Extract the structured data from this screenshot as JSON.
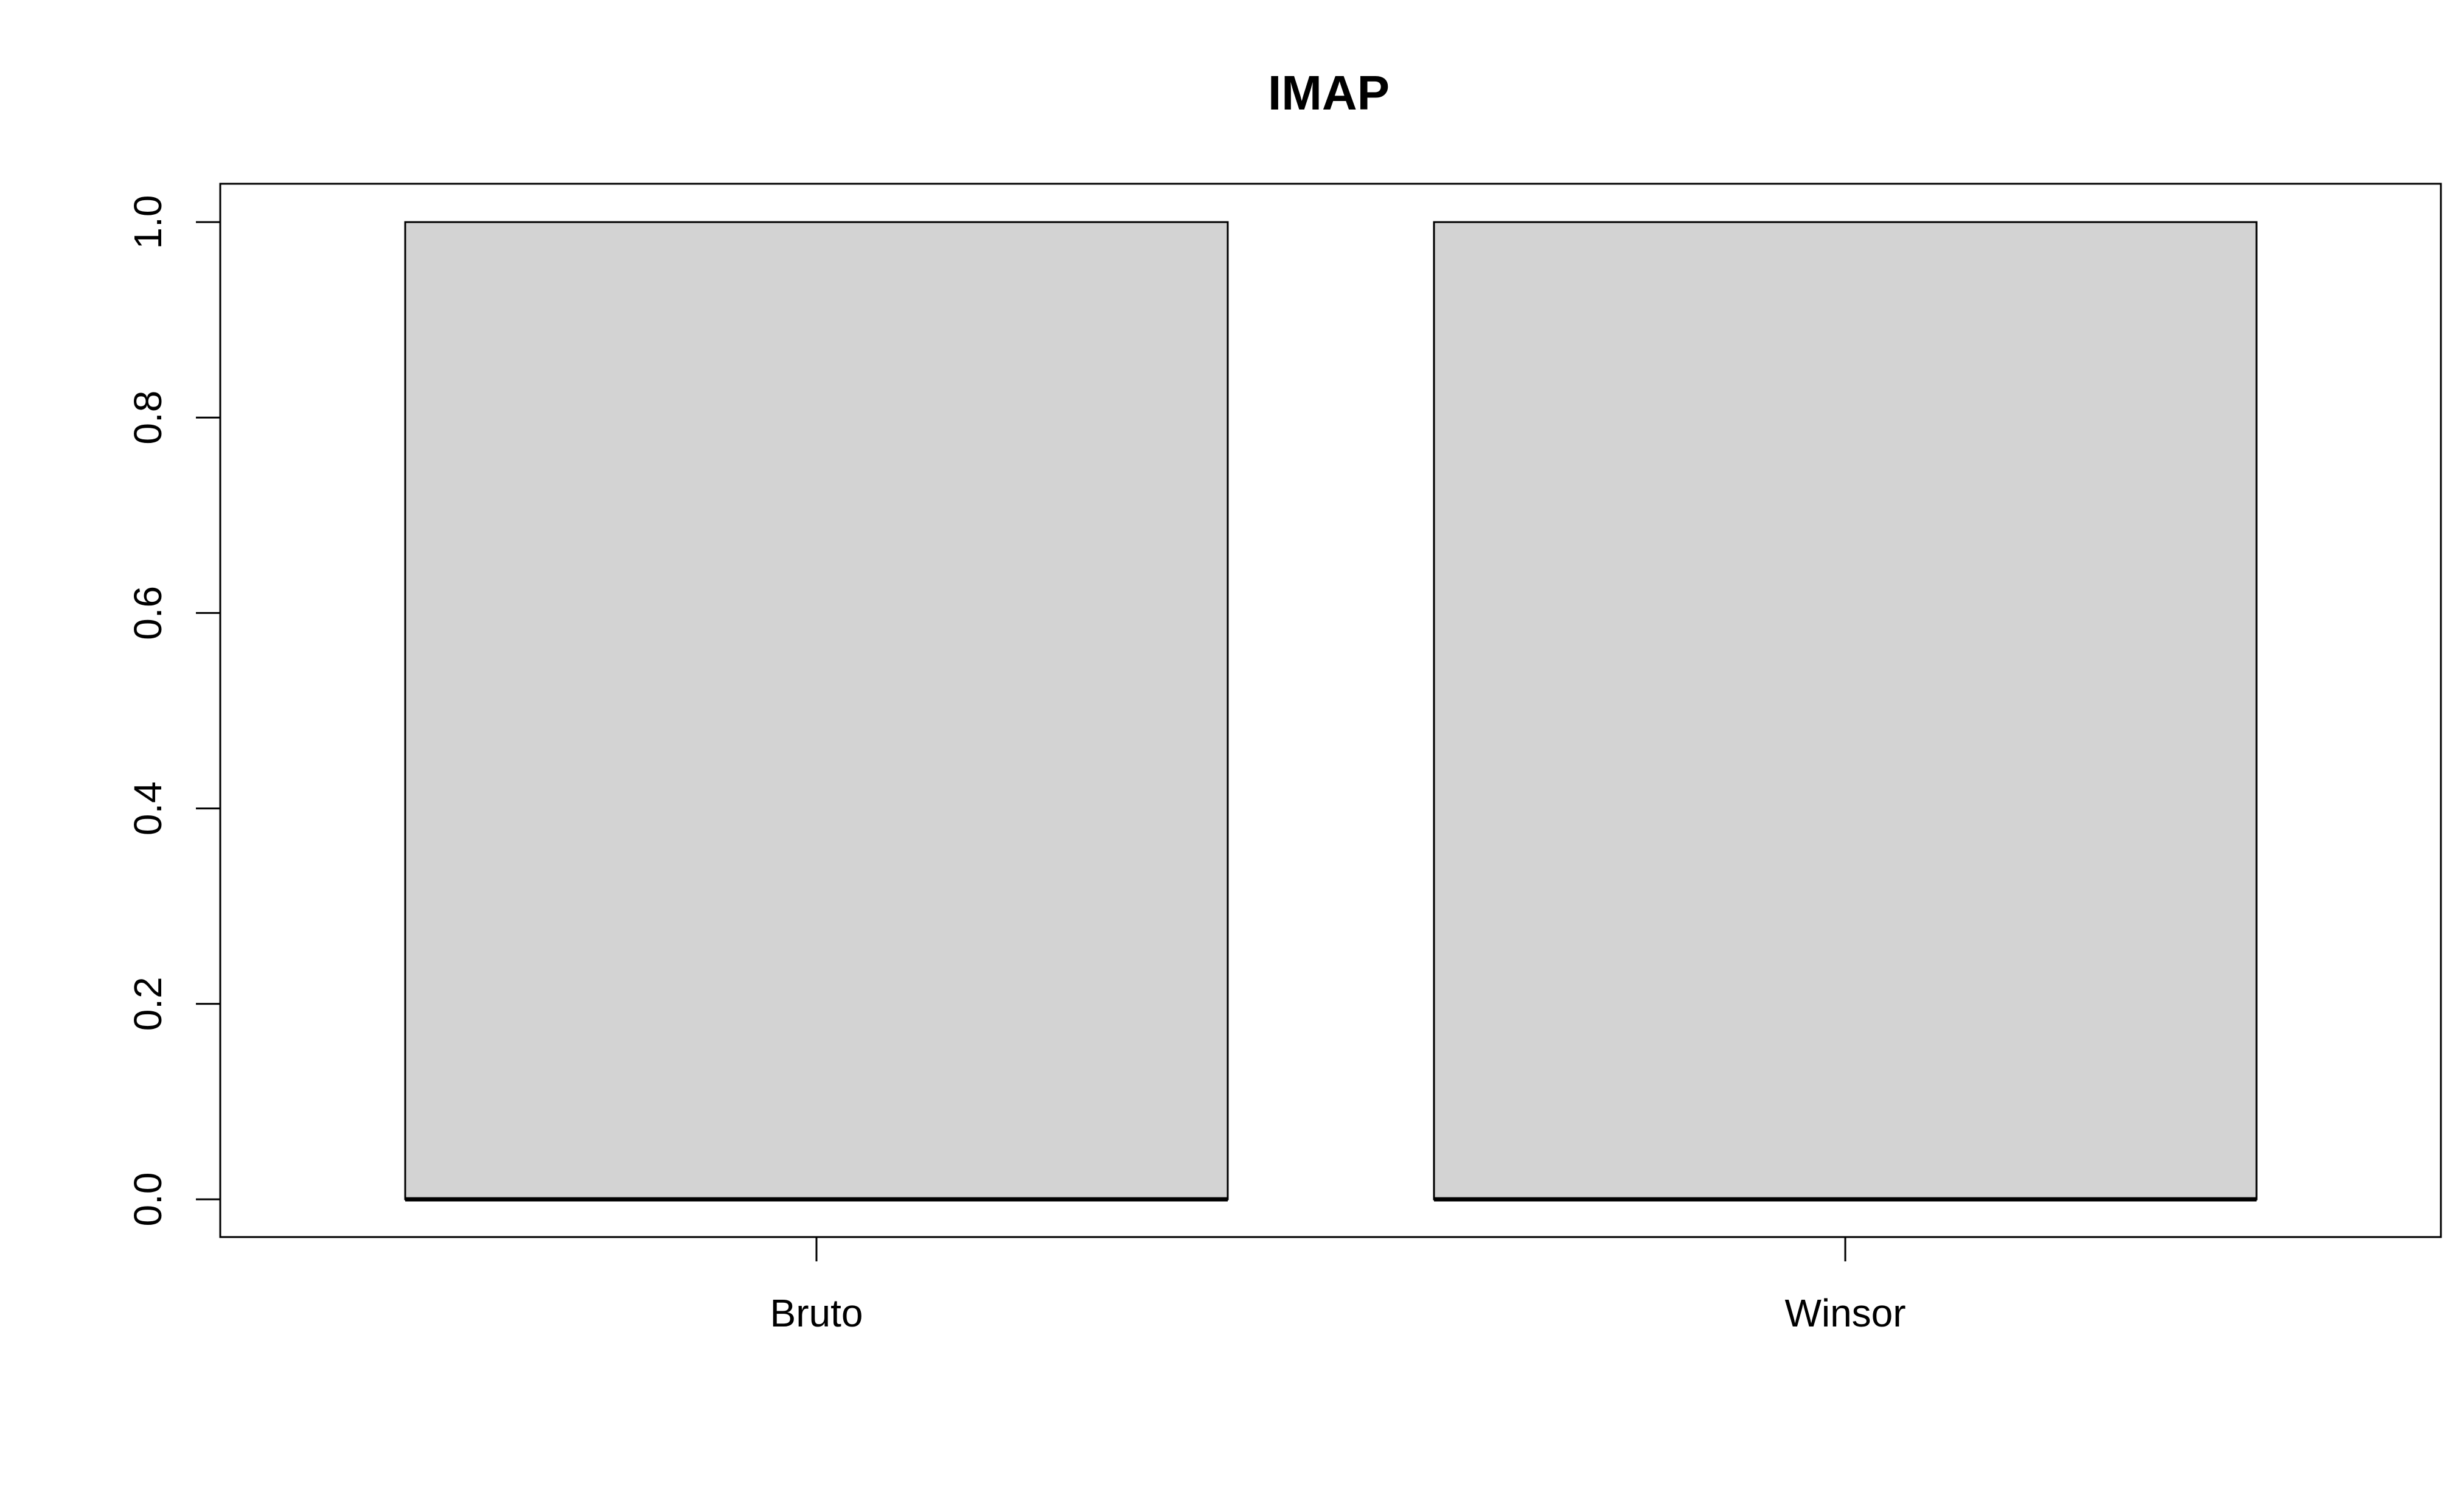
{
  "chart_data": {
    "type": "bar",
    "title": "IMAP",
    "xlabel": "",
    "ylabel": "",
    "categories": [
      "Bruto",
      "Winsor"
    ],
    "values": [
      1.0,
      1.0
    ],
    "ylim": [
      0,
      1.0
    ],
    "yticks": [
      "0.0",
      "0.2",
      "0.4",
      "0.6",
      "0.8",
      "1.0"
    ],
    "grid": false,
    "bar_color": "#d3d3d3",
    "bar_border_color": "#000000"
  }
}
